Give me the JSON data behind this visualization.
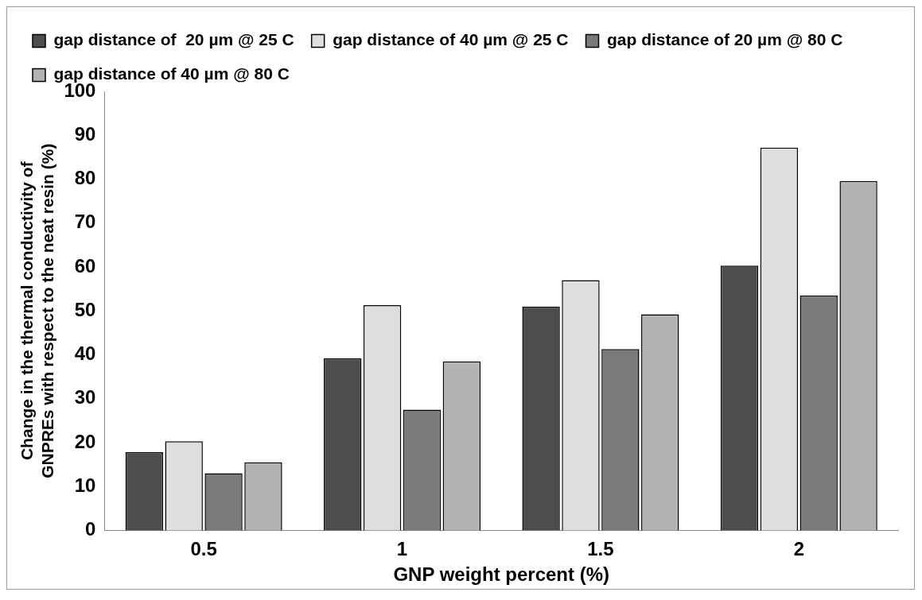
{
  "chart_data": {
    "type": "bar",
    "xlabel": "GNP weight percent (%)",
    "ylabel": "Change in the thermal conductivity of GNPREs with respect to the neat resin (%)",
    "categories": [
      "0.5",
      "1",
      "1.5",
      "2"
    ],
    "series": [
      {
        "name": "gap distance of  20 µm @ 25 C",
        "color": "#4d4d4d",
        "values": [
          17.8,
          39.2,
          51,
          60.3
        ]
      },
      {
        "name": "gap distance of 40 µm @ 25 C",
        "color": "#dedede",
        "values": [
          20.3,
          51.3,
          57,
          87.2
        ]
      },
      {
        "name": "gap distance of 20 µm @ 80 C",
        "color": "#7a7a7a",
        "values": [
          13,
          27.5,
          41.3,
          53.5
        ]
      },
      {
        "name": "gap distance of 40 µm @ 80 C",
        "color": "#b3b3b3",
        "values": [
          15.5,
          38.5,
          49.2,
          79.6
        ]
      }
    ],
    "ylim": [
      0,
      100
    ],
    "yticks": [
      0,
      10,
      20,
      30,
      40,
      50,
      60,
      70,
      80,
      90,
      100
    ],
    "grid": false,
    "legend": "top"
  }
}
